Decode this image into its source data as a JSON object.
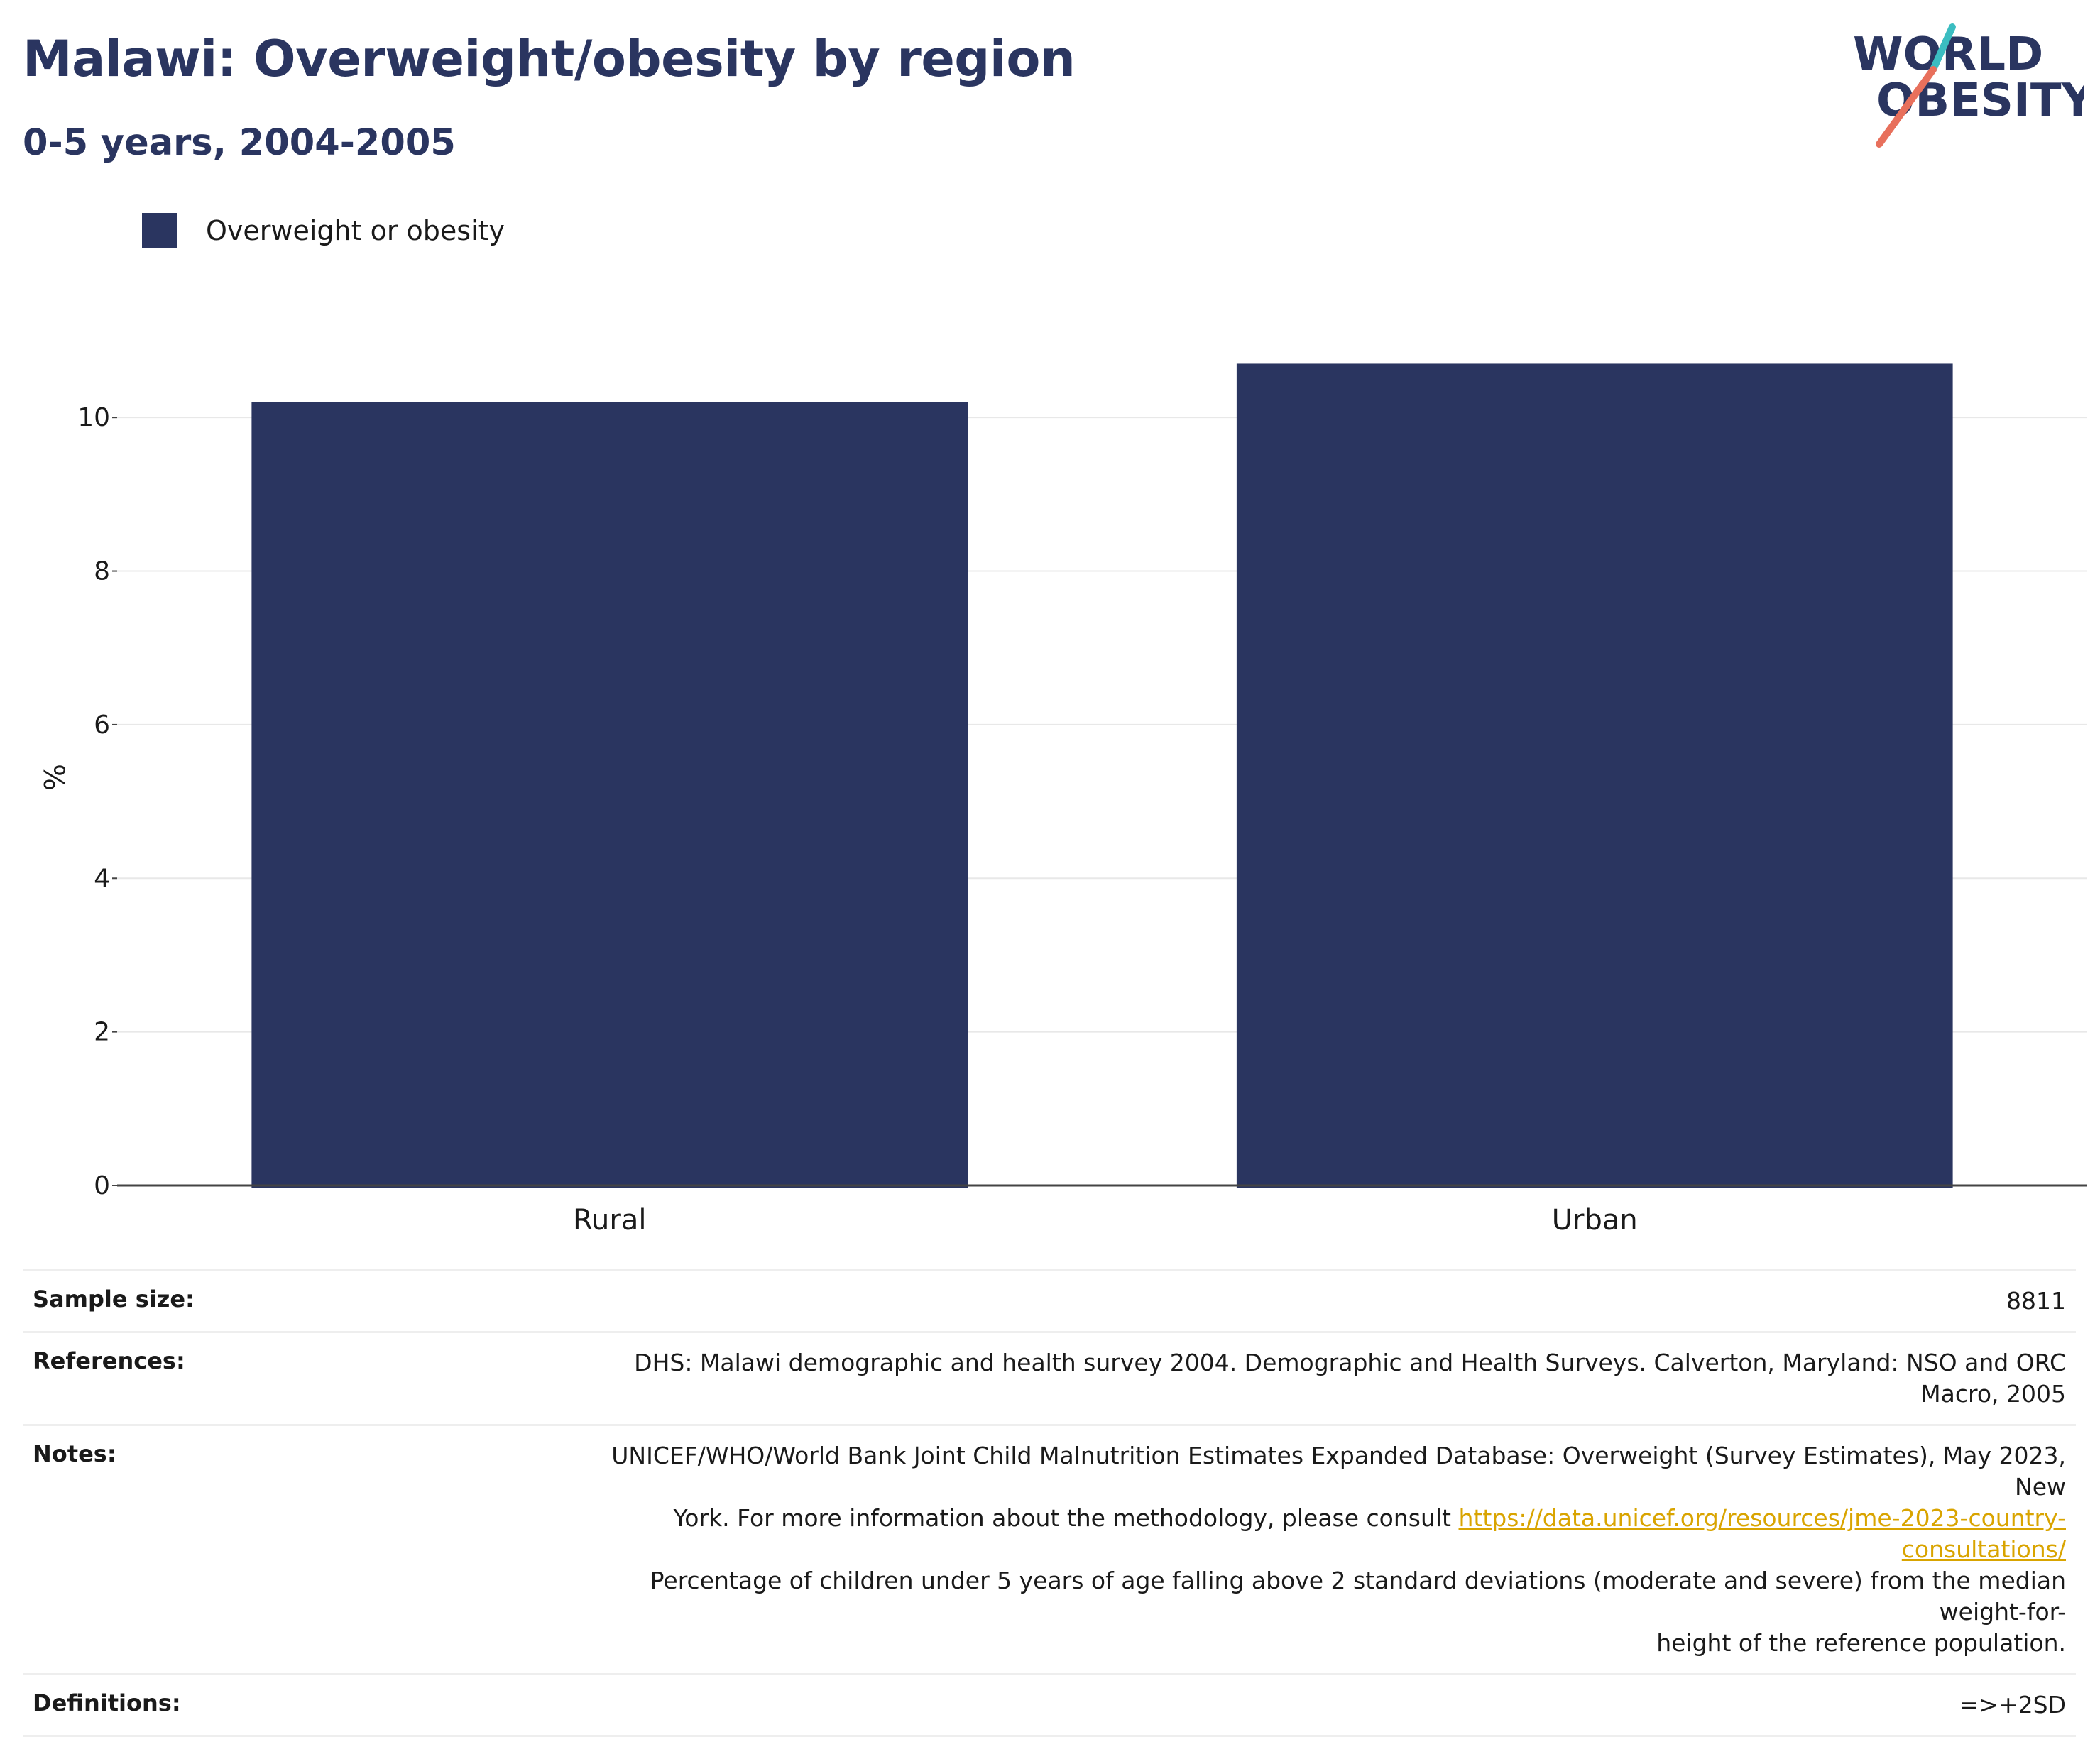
{
  "header": {
    "title": "Malawi: Overweight/obesity by region",
    "subtitle": "0-5 years, 2004-2005"
  },
  "logo": {
    "line1": "WORLD",
    "line2": "OBESITY",
    "colors": {
      "text": "#2a3560",
      "teal": "#3bbdc1",
      "coral": "#e8705c"
    }
  },
  "legend": {
    "label": "Overweight or obesity",
    "color": "#2a3560"
  },
  "chart_data": {
    "type": "bar",
    "categories": [
      "Rural",
      "Urban"
    ],
    "series": [
      {
        "name": "Overweight or obesity",
        "values": [
          10.2,
          10.7
        ],
        "color": "#2a3560"
      }
    ],
    "ylabel": "%",
    "xlabel": "",
    "ylim": [
      0,
      11
    ],
    "yticks": [
      0,
      2,
      4,
      6,
      8,
      10
    ],
    "grid": true
  },
  "info": {
    "sample_size_label": "Sample size:",
    "sample_size_value": "8811",
    "references_label": "References:",
    "references_value": "DHS: Malawi demographic and health survey 2004. Demographic and Health Surveys. Calverton, Maryland: NSO and ORC Macro, 2005",
    "notes_label": "Notes:",
    "notes_line1": "UNICEF/WHO/World Bank Joint Child Malnutrition Estimates Expanded Database: Overweight (Survey Estimates), May 2023, New",
    "notes_line2": "York. For more information about the methodology, please consult",
    "notes_link": "https://data.unicef.org/resources/jme-2023-country-consultations/",
    "notes_line3": "Percentage of children under 5 years of age falling above 2 standard deviations (moderate and severe) from the median weight-for-",
    "notes_line4": "height of the reference population.",
    "definitions_label": "Definitions:",
    "definitions_value": "=>+2SD"
  }
}
